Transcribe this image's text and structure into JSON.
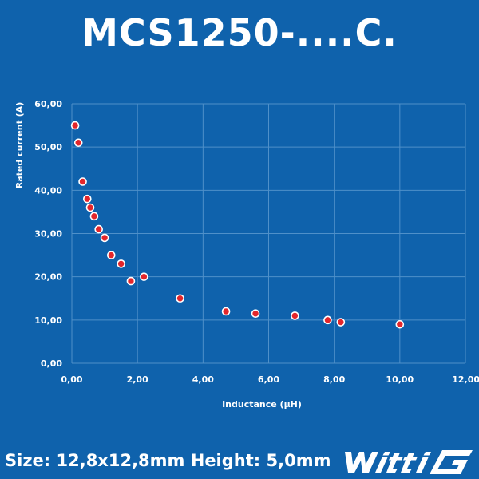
{
  "title": "MCS1250-....C.",
  "footer": {
    "size_text": "Size: 12,8x12,8mm Height: 5,0mm"
  },
  "logo": {
    "name": "wittig",
    "text": "wittiG"
  },
  "colors": {
    "background": "#0f62ac",
    "grid": "#4f90c9",
    "point_fill": "#e3262b",
    "point_stroke": "#ffffff",
    "text": "#ffffff"
  },
  "chart_data": {
    "type": "scatter",
    "xlabel": "Inductance (µH)",
    "ylabel": "Rated current (A)",
    "xlim": [
      0,
      12
    ],
    "ylim": [
      0,
      60
    ],
    "x_ticks": [
      0,
      2,
      4,
      6,
      8,
      10,
      12
    ],
    "y_ticks": [
      0,
      10,
      20,
      30,
      40,
      50,
      60
    ],
    "x_tick_labels": [
      "0,00",
      "2,00",
      "4,00",
      "6,00",
      "8,00",
      "10,00",
      "12,00"
    ],
    "y_tick_labels": [
      "0,00",
      "10,00",
      "20,00",
      "30,00",
      "40,00",
      "50,00",
      "60,00"
    ],
    "grid": true,
    "series": [
      {
        "points": [
          {
            "x": 0.1,
            "y": 55
          },
          {
            "x": 0.2,
            "y": 51
          },
          {
            "x": 0.33,
            "y": 42
          },
          {
            "x": 0.47,
            "y": 38
          },
          {
            "x": 0.56,
            "y": 36
          },
          {
            "x": 0.68,
            "y": 34
          },
          {
            "x": 0.82,
            "y": 31
          },
          {
            "x": 1.0,
            "y": 29
          },
          {
            "x": 1.2,
            "y": 25
          },
          {
            "x": 1.5,
            "y": 23
          },
          {
            "x": 1.8,
            "y": 19
          },
          {
            "x": 2.2,
            "y": 20
          },
          {
            "x": 3.3,
            "y": 15
          },
          {
            "x": 4.7,
            "y": 12
          },
          {
            "x": 5.6,
            "y": 11.5
          },
          {
            "x": 6.8,
            "y": 11
          },
          {
            "x": 7.8,
            "y": 10
          },
          {
            "x": 8.2,
            "y": 9.5
          },
          {
            "x": 10.0,
            "y": 9
          }
        ]
      }
    ]
  }
}
